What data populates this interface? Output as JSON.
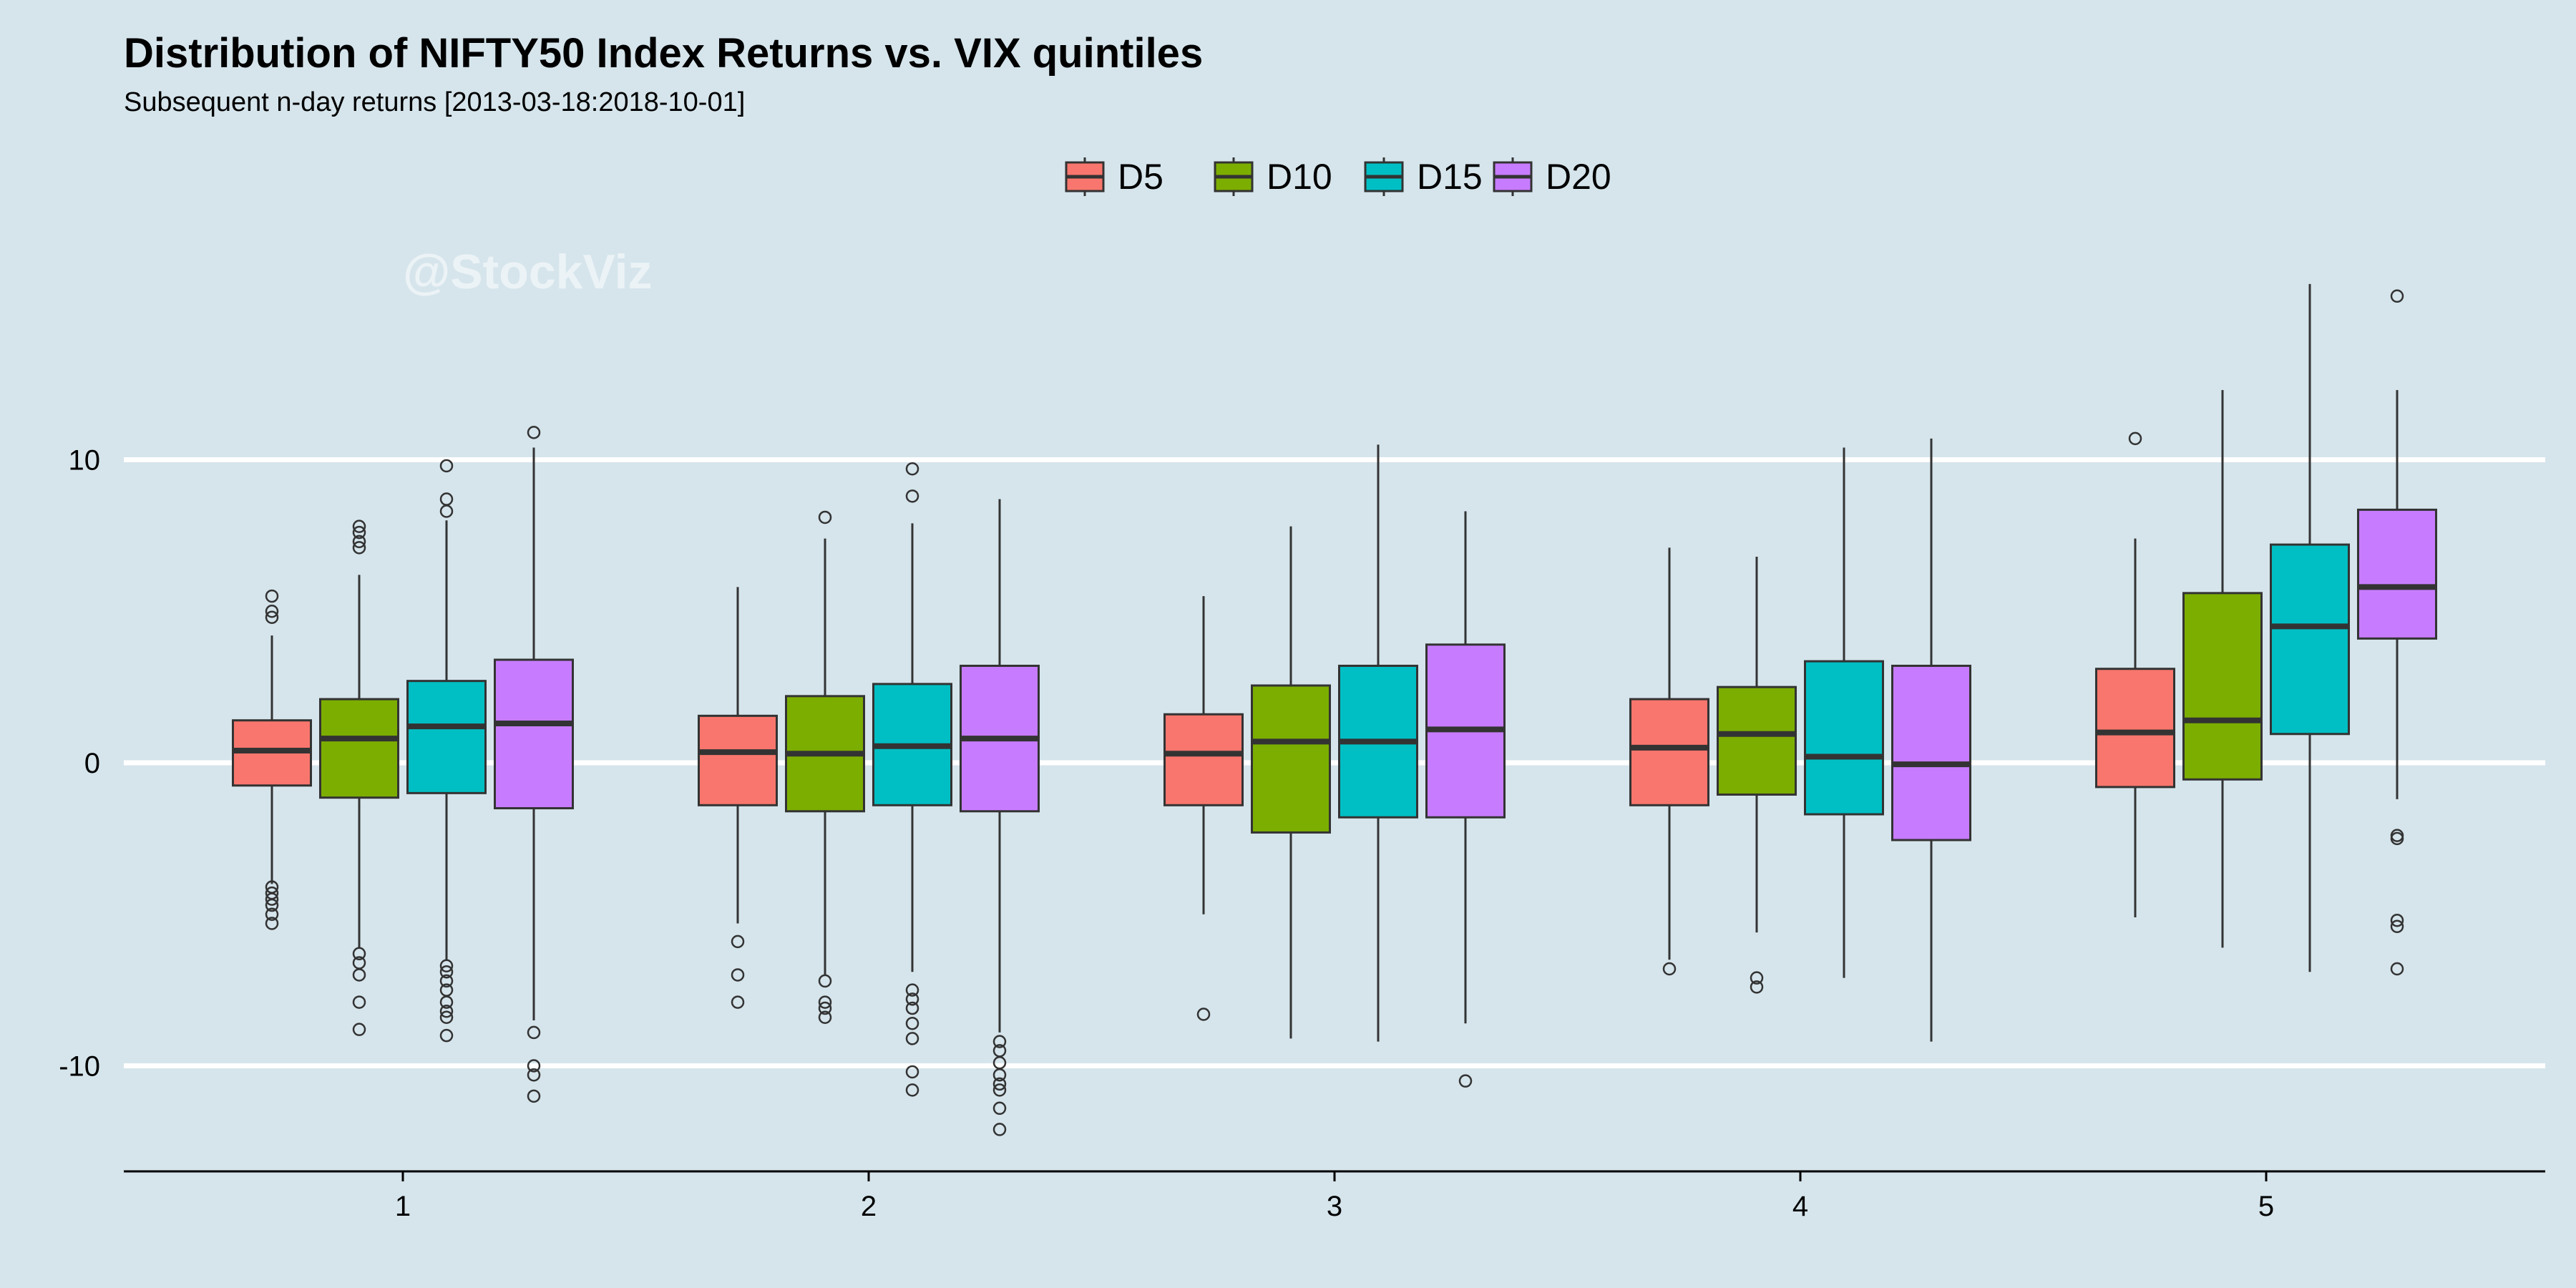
{
  "chart_data": {
    "type": "boxplot",
    "title": "Distribution of NIFTY50 Index Returns vs. VIX quintiles",
    "subtitle": "Subsequent n-day returns [2013-03-18:2018-10-01]",
    "watermark": "@StockViz",
    "xlabel": "",
    "ylabel": "",
    "ylim": [
      -13.5,
      19.5
    ],
    "y_ticks": [
      10,
      0,
      -10
    ],
    "grid": "horizontal-major",
    "legend_position": "top-center",
    "categories": [
      "1",
      "2",
      "3",
      "4",
      "5"
    ],
    "series": [
      {
        "name": "D5",
        "color": "#f8766d",
        "boxes": [
          {
            "low": -4.0,
            "q1": -0.75,
            "median": 0.4,
            "q3": 1.4,
            "high": 4.2,
            "outliers": [
              5.5,
              5.0,
              4.8,
              -4.1,
              -4.3,
              -4.5,
              -4.7,
              -5.0,
              -5.3
            ]
          },
          {
            "low": -5.3,
            "q1": -1.4,
            "median": 0.35,
            "q3": 1.55,
            "high": 5.8,
            "outliers": [
              -5.9,
              -7.0,
              -7.9
            ]
          },
          {
            "low": -5.0,
            "q1": -1.4,
            "median": 0.3,
            "q3": 1.6,
            "high": 5.5,
            "outliers": [
              -8.3
            ]
          },
          {
            "low": -6.5,
            "q1": -1.4,
            "median": 0.5,
            "q3": 2.1,
            "high": 7.1,
            "outliers": [
              -6.8
            ]
          },
          {
            "low": -5.1,
            "q1": -0.8,
            "median": 1.0,
            "q3": 3.1,
            "high": 7.4,
            "outliers": [
              10.7
            ]
          }
        ]
      },
      {
        "name": "D10",
        "color": "#7cae00",
        "boxes": [
          {
            "low": -6.1,
            "q1": -1.15,
            "median": 0.8,
            "q3": 2.1,
            "high": 6.2,
            "outliers": [
              7.8,
              7.6,
              7.3,
              7.1,
              -6.3,
              -6.6,
              -7.0,
              -7.9,
              -8.8
            ]
          },
          {
            "low": -7.0,
            "q1": -1.6,
            "median": 0.3,
            "q3": 2.2,
            "high": 7.4,
            "outliers": [
              8.1,
              -7.2,
              -7.9,
              -8.1,
              -8.4
            ]
          },
          {
            "low": -9.1,
            "q1": -2.3,
            "median": 0.7,
            "q3": 2.55,
            "high": 7.8,
            "outliers": []
          },
          {
            "low": -5.6,
            "q1": -1.05,
            "median": 0.95,
            "q3": 2.5,
            "high": 6.8,
            "outliers": [
              -7.1,
              -7.4
            ]
          },
          {
            "low": -6.1,
            "q1": -0.55,
            "median": 1.4,
            "q3": 5.6,
            "high": 12.3,
            "outliers": []
          }
        ]
      },
      {
        "name": "D15",
        "color": "#00bfc4",
        "boxes": [
          {
            "low": -6.5,
            "q1": -1.0,
            "median": 1.2,
            "q3": 2.7,
            "high": 8.0,
            "outliers": [
              9.8,
              8.7,
              8.3,
              -6.7,
              -6.9,
              -7.2,
              -7.5,
              -7.9,
              -8.2,
              -8.4,
              -9.0
            ]
          },
          {
            "low": -6.9,
            "q1": -1.4,
            "median": 0.55,
            "q3": 2.6,
            "high": 7.9,
            "outliers": [
              9.7,
              8.8,
              -7.5,
              -7.8,
              -8.1,
              -8.6,
              -9.1,
              -10.2,
              -10.8
            ]
          },
          {
            "low": -9.2,
            "q1": -1.8,
            "median": 0.7,
            "q3": 3.2,
            "high": 10.5,
            "outliers": []
          },
          {
            "low": -7.1,
            "q1": -1.7,
            "median": 0.2,
            "q3": 3.35,
            "high": 10.4,
            "outliers": []
          },
          {
            "low": -6.9,
            "q1": 0.95,
            "median": 4.5,
            "q3": 7.2,
            "high": 15.8,
            "outliers": []
          }
        ]
      },
      {
        "name": "D20",
        "color": "#c77cff",
        "boxes": [
          {
            "low": -8.5,
            "q1": -1.5,
            "median": 1.3,
            "q3": 3.4,
            "high": 10.4,
            "outliers": [
              10.9,
              -8.9,
              -10.0,
              -10.3,
              -11.0
            ]
          },
          {
            "low": -8.9,
            "q1": -1.6,
            "median": 0.8,
            "q3": 3.2,
            "high": 8.7,
            "outliers": [
              -9.2,
              -9.5,
              -9.9,
              -10.3,
              -10.6,
              -10.8,
              -11.4,
              -12.1
            ]
          },
          {
            "low": -8.6,
            "q1": -1.8,
            "median": 1.1,
            "q3": 3.9,
            "high": 8.3,
            "outliers": [
              -10.5
            ]
          },
          {
            "low": -9.2,
            "q1": -2.55,
            "median": -0.05,
            "q3": 3.2,
            "high": 10.7,
            "outliers": []
          },
          {
            "low": -1.2,
            "q1": 4.1,
            "median": 5.8,
            "q3": 8.35,
            "high": 12.3,
            "outliers": [
              15.4,
              -2.4,
              -2.5,
              -5.2,
              -5.4,
              -6.8
            ]
          }
        ]
      }
    ]
  }
}
